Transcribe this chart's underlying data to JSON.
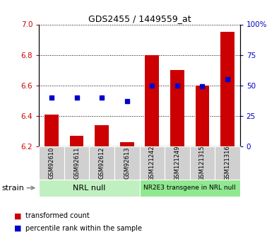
{
  "title": "GDS2455 / 1449559_at",
  "samples": [
    "GSM92610",
    "GSM92611",
    "GSM92612",
    "GSM92613",
    "GSM121242",
    "GSM121249",
    "GSM121315",
    "GSM121316"
  ],
  "red_values": [
    6.41,
    6.27,
    6.34,
    6.23,
    6.8,
    6.7,
    6.6,
    6.95
  ],
  "blue_pct": [
    40,
    40,
    40,
    37,
    50,
    50,
    49,
    55
  ],
  "ylim_left": [
    6.2,
    7.0
  ],
  "ylim_right": [
    0,
    100
  ],
  "yticks_left": [
    6.2,
    6.4,
    6.6,
    6.8,
    7.0
  ],
  "yticks_right": [
    0,
    25,
    50,
    75,
    100
  ],
  "ytick_labels_right": [
    "0",
    "25",
    "50",
    "75",
    "100%"
  ],
  "group1_label": "NRL null",
  "group2_label": "NR2E3 transgene in NRL null",
  "group1_color": "#c0f0c0",
  "group2_color": "#90e890",
  "bar_color": "#cc0000",
  "dot_color": "#0000cc",
  "bar_width": 0.55,
  "base_value": 6.2,
  "legend_red": "transformed count",
  "legend_blue": "percentile rank within the sample",
  "strain_label": "strain",
  "grid_color": "black"
}
